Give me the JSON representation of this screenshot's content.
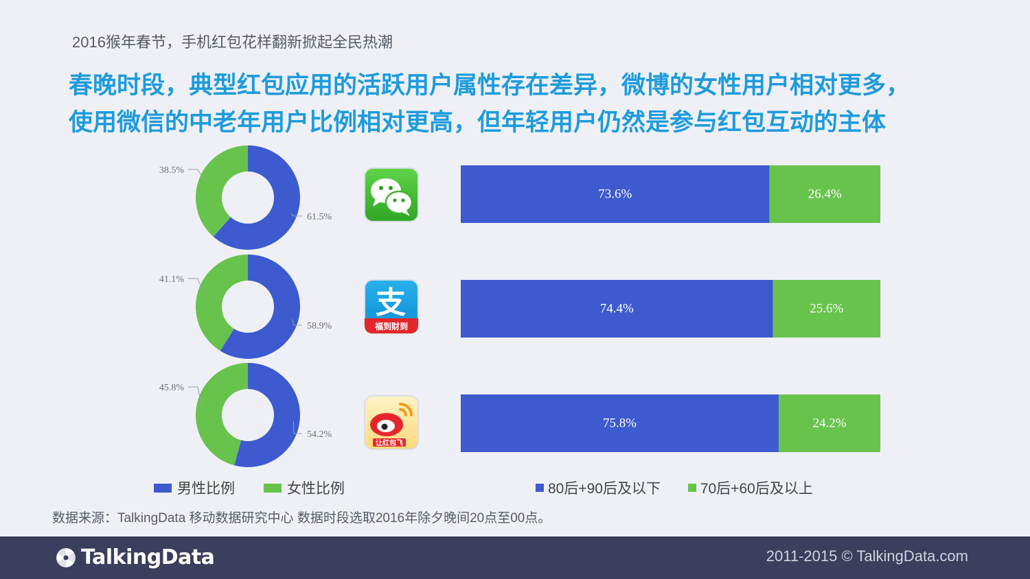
{
  "page": {
    "subtitle": "2016猴年春节，手机红包花样翻新掀起全民热潮",
    "headline_line1": "春晚时段，典型红包应用的活跃用户属性存在差异，微博的女性用户相对更多，",
    "headline_line2": "使用微信的中老年用户比例相对更高，但年轻用户仍然是参与红包互动的主体",
    "source": "数据来源：TalkingData 移动数据研究中心 数据时段选取2016年除夕晚间20点至00点。"
  },
  "apps": [
    {
      "name": "wechat-icon",
      "badge_text": ""
    },
    {
      "name": "alipay-icon",
      "glyph": "支",
      "badge_text": "福到财到"
    },
    {
      "name": "weibo-icon",
      "badge_text": "让红包飞"
    }
  ],
  "legend": {
    "gender": [
      {
        "label": "男性比例",
        "color": "#3d5bce"
      },
      {
        "label": "女性比例",
        "color": "#68c34d"
      }
    ],
    "age": [
      {
        "label": "80后+90后及以下",
        "color": "#3d5bce"
      },
      {
        "label": "70后+60后及以上",
        "color": "#68c34d"
      }
    ]
  },
  "chart_data": [
    {
      "type": "pie",
      "variant": "donut",
      "slices": [
        {
          "label": "61.5%",
          "value": 61.5,
          "color": "#3d5bce"
        },
        {
          "label": "38.5%",
          "value": 38.5,
          "color": "#68c34d"
        }
      ]
    },
    {
      "type": "pie",
      "variant": "donut",
      "slices": [
        {
          "label": "58.9%",
          "value": 58.9,
          "color": "#3d5bce"
        },
        {
          "label": "41.1%",
          "value": 41.1,
          "color": "#68c34d"
        }
      ]
    },
    {
      "type": "pie",
      "variant": "donut",
      "slices": [
        {
          "label": "54.2%",
          "value": 54.2,
          "color": "#3d5bce"
        },
        {
          "label": "45.8%",
          "value": 45.8,
          "color": "#68c34d"
        }
      ]
    },
    {
      "type": "bar",
      "orientation": "horizontal",
      "stacked": true,
      "normalized": true,
      "series": [
        {
          "values": [
            73.6,
            74.4,
            75.8
          ],
          "labels": [
            "73.6%",
            "74.4%",
            "75.8%"
          ],
          "color": "#3d5bce"
        },
        {
          "values": [
            26.4,
            25.6,
            24.2
          ],
          "labels": [
            "26.4%",
            "25.6%",
            "24.2%"
          ],
          "color": "#68c34d"
        }
      ]
    }
  ],
  "footer": {
    "brand": "TalkingData",
    "copyright": "2011-2015 © TalkingData.com"
  }
}
